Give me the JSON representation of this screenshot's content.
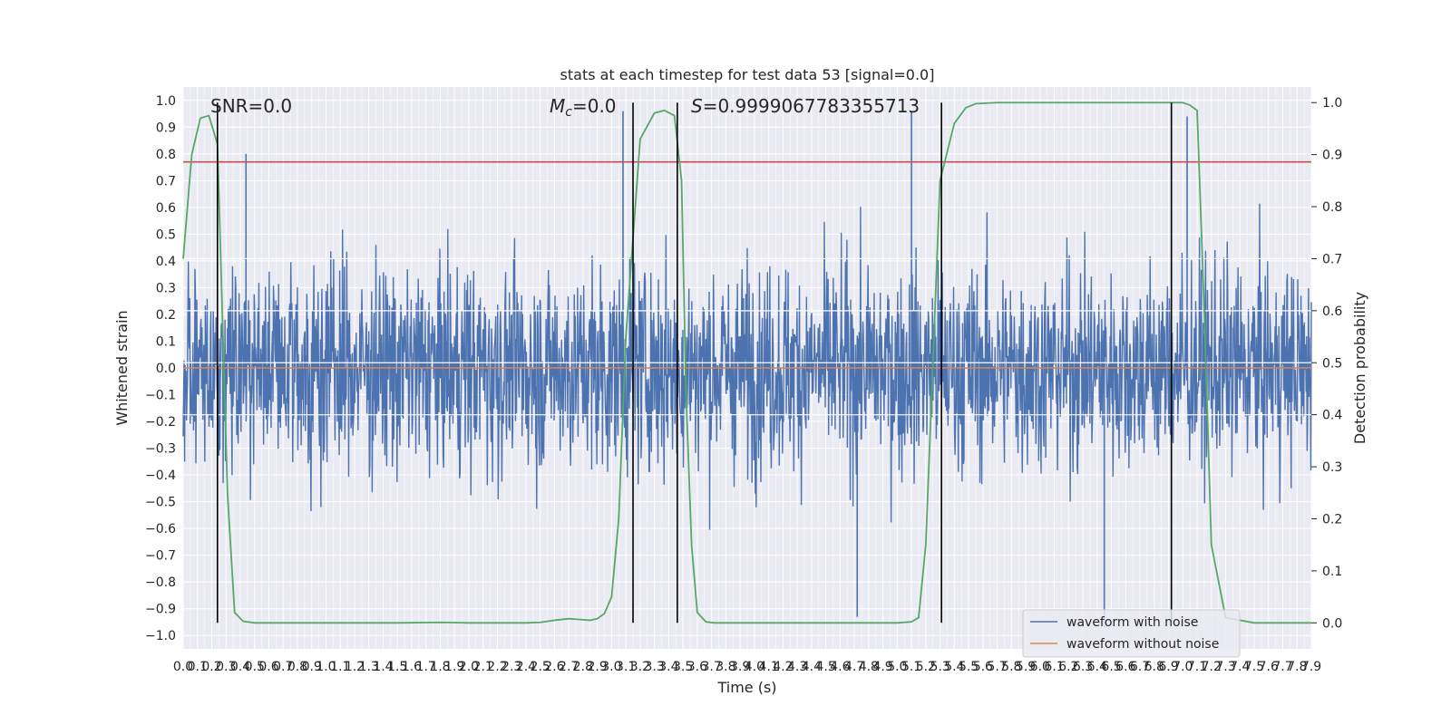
{
  "chart_data": {
    "type": "line",
    "title": "stats at each timestep for test data 53 [signal=0.0]",
    "xlabel": "Time (s)",
    "ylabel": "Whitened strain",
    "ylabel_right": "Detection probability",
    "xlim": [
      0.0,
      7.9
    ],
    "ylim_left": [
      -1.05,
      1.05
    ],
    "ylim_right": [
      -0.05,
      1.03
    ],
    "grid": true,
    "legend_position": "lower right",
    "annotations": {
      "snr": "SNR=0.0",
      "mc_symbol": "M",
      "mc_sub": "c",
      "mc_value": "=0.0",
      "s_symbol": "S",
      "s_value": "=0.9999067783355713"
    },
    "xticks": [
      "0.0",
      "0.1",
      "0.2",
      "0.3",
      "0.4",
      "0.5",
      "0.6",
      "0.7",
      "0.8",
      "0.9",
      "1.0",
      "1.1",
      "1.2",
      "1.3",
      "1.4",
      "1.5",
      "1.6",
      "1.7",
      "1.8",
      "1.9",
      "2.0",
      "2.1",
      "2.2",
      "2.3",
      "2.4",
      "2.5",
      "2.6",
      "2.7",
      "2.8",
      "2.9",
      "3.0",
      "3.1",
      "3.2",
      "3.3",
      "3.4",
      "3.5",
      "3.6",
      "3.7",
      "3.8",
      "3.9",
      "4.0",
      "4.1",
      "4.2",
      "4.3",
      "4.4",
      "4.5",
      "4.6",
      "4.7",
      "4.8",
      "4.9",
      "5.0",
      "5.1",
      "5.2",
      "5.3",
      "5.4",
      "5.5",
      "5.6",
      "5.7",
      "5.8",
      "5.9",
      "6.0",
      "6.1",
      "6.2",
      "6.3",
      "6.4",
      "6.5",
      "6.6",
      "6.7",
      "6.8",
      "6.9",
      "7.0",
      "7.1",
      "7.2",
      "7.3",
      "7.4",
      "7.5",
      "7.6",
      "7.7",
      "7.8",
      "7.9"
    ],
    "yticks_left": [
      "−1.0",
      "−0.9",
      "−0.8",
      "−0.7",
      "−0.6",
      "−0.5",
      "−0.4",
      "−0.3",
      "−0.2",
      "−0.1",
      "0.0",
      "0.1",
      "0.2",
      "0.3",
      "0.4",
      "0.5",
      "0.6",
      "0.7",
      "0.8",
      "0.9",
      "1.0"
    ],
    "yticks_right": [
      "0.0",
      "0.1",
      "0.2",
      "0.3",
      "0.4",
      "0.5",
      "0.6",
      "0.7",
      "0.8",
      "0.9",
      "1.0"
    ],
    "series": [
      {
        "name": "waveform with noise",
        "color": "#4c72b0",
        "type": "noise",
        "approx_amplitude": 0.55,
        "peak_values": [
          0.96,
          -0.97
        ]
      },
      {
        "name": "waveform without noise",
        "color": "#dd8452",
        "values": [
          0.0,
          0.0
        ],
        "x": [
          0.0,
          7.9
        ]
      },
      {
        "name": "",
        "color": "#55a868",
        "axis": "right",
        "x": [
          0.0,
          0.06,
          0.12,
          0.18,
          0.24,
          0.31,
          0.36,
          0.42,
          0.5,
          0.8,
          1.2,
          1.5,
          1.8,
          2.0,
          2.4,
          2.5,
          2.6,
          2.7,
          2.8,
          2.85,
          2.9,
          2.95,
          3.0,
          3.05,
          3.1,
          3.2,
          3.3,
          3.37,
          3.44,
          3.49,
          3.52,
          3.56,
          3.6,
          3.66,
          3.72,
          4.0,
          4.5,
          5.0,
          5.1,
          5.15,
          5.2,
          5.3,
          5.4,
          5.48,
          5.55,
          5.7,
          6.0,
          6.5,
          7.0,
          7.05,
          7.1,
          7.15,
          7.2,
          7.3,
          7.5,
          7.7,
          7.9
        ],
        "values": [
          0.7,
          0.9,
          0.97,
          0.975,
          0.92,
          0.25,
          0.02,
          0.003,
          0.0,
          0.0,
          0.0,
          0.0,
          0.001,
          0.0,
          0.0,
          0.001,
          0.005,
          0.008,
          0.006,
          0.005,
          0.008,
          0.018,
          0.05,
          0.2,
          0.55,
          0.93,
          0.98,
          0.985,
          0.975,
          0.85,
          0.45,
          0.15,
          0.02,
          0.002,
          0.0,
          0.0,
          0.0,
          0.0,
          0.002,
          0.01,
          0.15,
          0.85,
          0.96,
          0.99,
          0.998,
          1.0,
          1.0,
          1.0,
          1.0,
          0.995,
          0.985,
          0.6,
          0.15,
          0.01,
          0.0,
          0.0,
          0.0
        ]
      },
      {
        "name": "",
        "color": "#c44e52",
        "axis": "left",
        "values": [
          0.77,
          0.77
        ],
        "x": [
          0.0,
          7.9
        ]
      }
    ],
    "white_hlines_right": [
      0.7,
      0.6,
      0.5,
      0.4
    ],
    "vlines": [
      0.24,
      3.15,
      3.46,
      5.31,
      6.92
    ]
  }
}
